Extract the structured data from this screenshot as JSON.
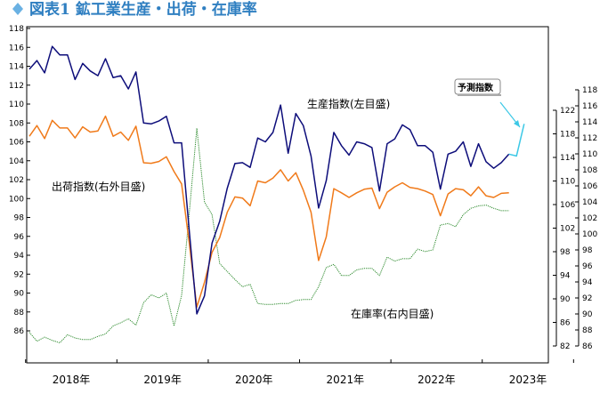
{
  "header": {
    "title": "図表1 鉱工業生産・出荷・在庫率",
    "title_color": "#2f7fc1",
    "diamond_icon_color": "#6ab1e3"
  },
  "chart_data": {
    "type": "line",
    "left_axis": {
      "min": 86,
      "max": 118,
      "step": 2
    },
    "mid_axis": {
      "min": 82,
      "max": 122,
      "step": 4
    },
    "right_axis": {
      "min": 86,
      "max": 118,
      "step": 2
    },
    "x_labels": [
      "2018年",
      "2019年",
      "2020年",
      "2021年",
      "2022年",
      "2023年"
    ],
    "annotations": {
      "production": "生産指数(左目盛)",
      "shipments": "出荷指数(右外目盛)",
      "inventory": "在庫率(右内目盛)",
      "forecast": "予測指数"
    },
    "colors": {
      "production": "#0d0d7a",
      "shipments": "#f07a1a",
      "inventory": "#2e8b2e",
      "forecast": "#3cc8e6"
    },
    "series": [
      {
        "key": "production",
        "axis": "left",
        "values": [
          113.7,
          114.6,
          113.3,
          116.1,
          115.2,
          115.2,
          112.6,
          114.3,
          113.5,
          113.0,
          114.8,
          112.8,
          113.0,
          111.6,
          113.4,
          108.0,
          107.9,
          108.2,
          108.7,
          105.9,
          105.9,
          96.6,
          87.8,
          89.7,
          95.3,
          97.6,
          101.1,
          103.7,
          103.8,
          103.3,
          106.4,
          106.0,
          107.0,
          109.9,
          104.8,
          109.0,
          107.7,
          104.5,
          99.0,
          101.9,
          107.0,
          105.6,
          104.6,
          106.0,
          105.8,
          105.4,
          100.8,
          105.8,
          106.3,
          107.8,
          107.3,
          105.6,
          105.6,
          104.9,
          101.0,
          104.7,
          105.0,
          106.0,
          103.4,
          105.8,
          103.9,
          103.2,
          103.8,
          104.7
        ]
      },
      {
        "key": "forecast",
        "axis": "left",
        "values": [
          104.7,
          104.5,
          107.9
        ]
      },
      {
        "key": "shipments",
        "axis": "mid",
        "values": [
          117.6,
          119.4,
          117.2,
          120.3,
          119.0,
          119.0,
          117.3,
          119.2,
          118.3,
          118.5,
          121.0,
          117.6,
          118.3,
          116.9,
          119.3,
          113.1,
          113.0,
          113.3,
          114.1,
          111.6,
          109.5,
          99.5,
          88.6,
          92.8,
          97.9,
          100.4,
          104.7,
          107.3,
          107.1,
          105.8,
          110.0,
          109.7,
          110.5,
          111.9,
          110.0,
          111.4,
          108.4,
          104.7,
          96.5,
          100.5,
          108.7,
          108.0,
          107.2,
          108.0,
          108.6,
          108.8,
          105.3,
          108.1,
          109.0,
          109.7,
          108.9,
          108.7,
          108.3,
          107.7,
          104.1,
          107.8,
          108.7,
          108.5,
          107.5,
          109.0,
          107.5,
          107.2,
          107.9,
          108.0
        ]
      },
      {
        "key": "inventory",
        "axis": "right",
        "values": [
          87.7,
          86.6,
          87.1,
          86.7,
          86.4,
          87.4,
          87.0,
          86.8,
          86.8,
          87.2,
          87.5,
          88.5,
          88.9,
          89.4,
          88.6,
          91.4,
          92.4,
          92.0,
          92.6,
          88.5,
          92.3,
          102.6,
          113.2,
          104.0,
          102.4,
          96.3,
          95.3,
          94.3,
          93.4,
          93.7,
          91.3,
          91.2,
          91.2,
          91.3,
          91.3,
          91.7,
          91.8,
          91.8,
          93.4,
          95.8,
          96.2,
          94.8,
          94.8,
          95.5,
          95.7,
          95.7,
          94.8,
          97.1,
          96.6,
          96.9,
          96.9,
          98.1,
          97.8,
          98.0,
          101.1,
          101.3,
          100.9,
          102.4,
          103.2,
          103.5,
          103.6,
          103.2,
          102.9,
          102.9
        ]
      }
    ]
  }
}
